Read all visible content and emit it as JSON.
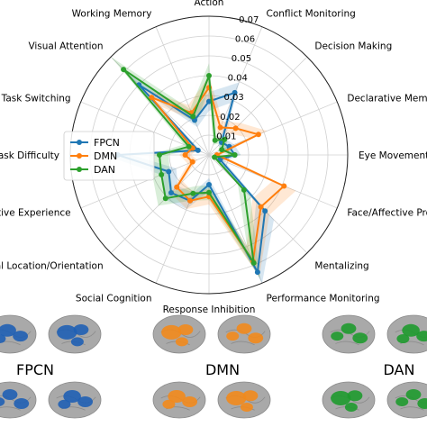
{
  "chart_data": {
    "type": "radar",
    "title": "",
    "axes": [
      "Action",
      "Conflict Monitoring",
      "Decision Making",
      "Declarative Memory",
      "Eye Movements",
      "Face/Affective Processing",
      "Mentalizing",
      "Performance Monitoring",
      "Response Inhibition",
      "Social Cognition",
      "Spatial Location/Orientation",
      "Affective Experience",
      "Task Difficulty",
      "Task Switching",
      "Visual Attention",
      "Working Memory"
    ],
    "rlim": [
      0,
      0.07
    ],
    "rticks": [
      "0.01",
      "0.02",
      "0.03",
      "0.04",
      "0.05",
      "0.06",
      "0.07"
    ],
    "grid": true,
    "legend": "left",
    "series": [
      {
        "name": "FPCN",
        "color": "#1f77b4",
        "values": [
          0.027,
          0.034,
          0.009,
          0.011,
          0.013,
          0.006,
          0.04,
          0.064,
          0.015,
          0.025,
          0.027,
          0.022,
          0.046,
          0.006,
          0.05,
          0.019
        ]
      },
      {
        "name": "DMN",
        "color": "#ff7f0e",
        "values": [
          0.034,
          0.015,
          0.019,
          0.027,
          0.004,
          0.041,
          0.037,
          0.058,
          0.021,
          0.025,
          0.023,
          0.009,
          0.012,
          0.009,
          0.041,
          0.023
        ]
      },
      {
        "name": "DAN",
        "color": "#2ca02c",
        "values": [
          0.04,
          0.008,
          0.011,
          0.007,
          0.013,
          0.003,
          0.025,
          0.059,
          0.019,
          0.021,
          0.031,
          0.026,
          0.025,
          0.011,
          0.061,
          0.021
        ]
      }
    ]
  },
  "brains": [
    {
      "label": "FPCN",
      "color": "#1f5fb4"
    },
    {
      "label": "DMN",
      "color": "#f28a1c"
    },
    {
      "label": "DAN",
      "color": "#1e9a2e"
    }
  ]
}
